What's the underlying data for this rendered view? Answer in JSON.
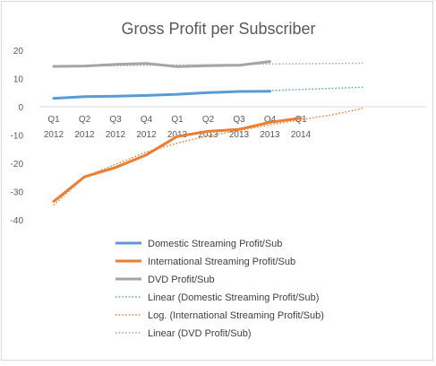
{
  "chart_data": {
    "type": "line",
    "title": "Gross Profit per Subscriber",
    "categories": [
      [
        "Q1",
        "2012"
      ],
      [
        "Q2",
        "2012"
      ],
      [
        "Q3",
        "2012"
      ],
      [
        "Q4",
        "2012"
      ],
      [
        "Q1",
        "2013"
      ],
      [
        "Q2",
        "2013"
      ],
      [
        "Q3",
        "2013"
      ],
      [
        "Q4",
        "2013"
      ],
      [
        "Q1",
        "2014"
      ]
    ],
    "ylim": [
      -40,
      20
    ],
    "yticks": [
      20,
      10,
      0,
      -10,
      -20,
      -30,
      -40
    ],
    "grid": false,
    "legend_position": "bottom",
    "series": [
      {
        "name": "Domestic Streaming Profit/Sub",
        "color": "#5b9bd5",
        "style": "solid",
        "values": [
          3.0,
          3.6,
          3.7,
          4.0,
          4.4,
          5.0,
          5.4,
          5.5,
          null
        ]
      },
      {
        "name": "International Streaming Profit/Sub",
        "color": "#ed7d31",
        "style": "solid",
        "values": [
          -33.5,
          -24.8,
          -21.5,
          -17.0,
          -10.5,
          -8.7,
          -8.0,
          -5.5,
          -4.0
        ]
      },
      {
        "name": "DVD Profit/Sub",
        "color": "#a5a5a5",
        "style": "solid",
        "values": [
          14.3,
          14.4,
          15.0,
          15.3,
          14.2,
          14.5,
          14.7,
          16.0,
          null
        ]
      }
    ],
    "trendlines": [
      {
        "name": "Linear (Domestic Streaming Profit/Sub)",
        "color": "#5b9bd5",
        "style": "dotted",
        "kind": "linear",
        "values": [
          3.0,
          3.4,
          3.8,
          4.1,
          4.5,
          4.9,
          5.3,
          5.7,
          6.1,
          6.5,
          6.9
        ]
      },
      {
        "name": "Log. (International Streaming Profit/Sub)",
        "color": "#ed7d31",
        "style": "dotted",
        "kind": "log",
        "values": [
          -34.8,
          -24.8,
          -20.4,
          -16.0,
          -12.9,
          -10.3,
          -8.4,
          -6.4,
          -4.6,
          -2.9,
          -0.6
        ]
      },
      {
        "name": "Linear (DVD Profit/Sub)",
        "color": "#a5a5a5",
        "style": "dotted",
        "kind": "linear",
        "values": [
          14.3,
          14.4,
          14.5,
          14.7,
          14.8,
          14.9,
          15.0,
          15.1,
          15.2,
          15.3,
          15.4
        ]
      }
    ]
  }
}
